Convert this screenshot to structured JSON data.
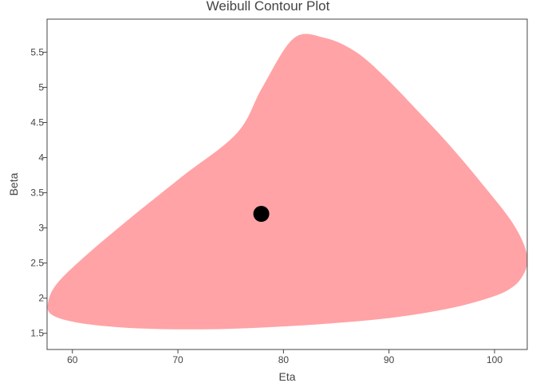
{
  "chart_data": {
    "type": "scatter",
    "title": "Weibull Contour Plot",
    "xlabel": "Eta",
    "ylabel": "Beta",
    "xlim": [
      57.6,
      103.1
    ],
    "ylim": [
      1.27,
      5.97
    ],
    "x_ticks": [
      "60",
      "70",
      "80",
      "90",
      "100"
    ],
    "y_ticks": [
      "1.5",
      "2",
      "2.5",
      "3",
      "3.5",
      "4",
      "4.5",
      "5",
      "5.5"
    ],
    "grid": false,
    "legend": "none",
    "colors": {
      "region": "#ffa3a6",
      "point": "#000000",
      "frame": "#444444"
    },
    "series": [
      {
        "type": "filled-contour",
        "x": [
          81.0,
          84.0,
          86.9,
          89.6,
          92.5,
          95.6,
          98.7,
          101.8,
          103.1,
          102.6,
          101.1,
          98.3,
          94.9,
          90.2,
          84.4,
          79.1,
          73.9,
          68.5,
          64.0,
          60.2,
          58.0,
          57.7,
          58.5,
          61.0,
          65.0,
          70.3,
          75.6,
          78.0,
          81.0
        ],
        "y": [
          5.7,
          5.7,
          5.5,
          5.15,
          4.7,
          4.2,
          3.65,
          3.05,
          2.6,
          2.3,
          2.1,
          1.95,
          1.83,
          1.72,
          1.64,
          1.59,
          1.56,
          1.56,
          1.59,
          1.66,
          1.77,
          1.94,
          2.2,
          2.57,
          3.08,
          3.72,
          4.35,
          5.0,
          5.7
        ]
      },
      {
        "type": "point",
        "x": [
          77.9
        ],
        "y": [
          3.2
        ]
      }
    ]
  }
}
